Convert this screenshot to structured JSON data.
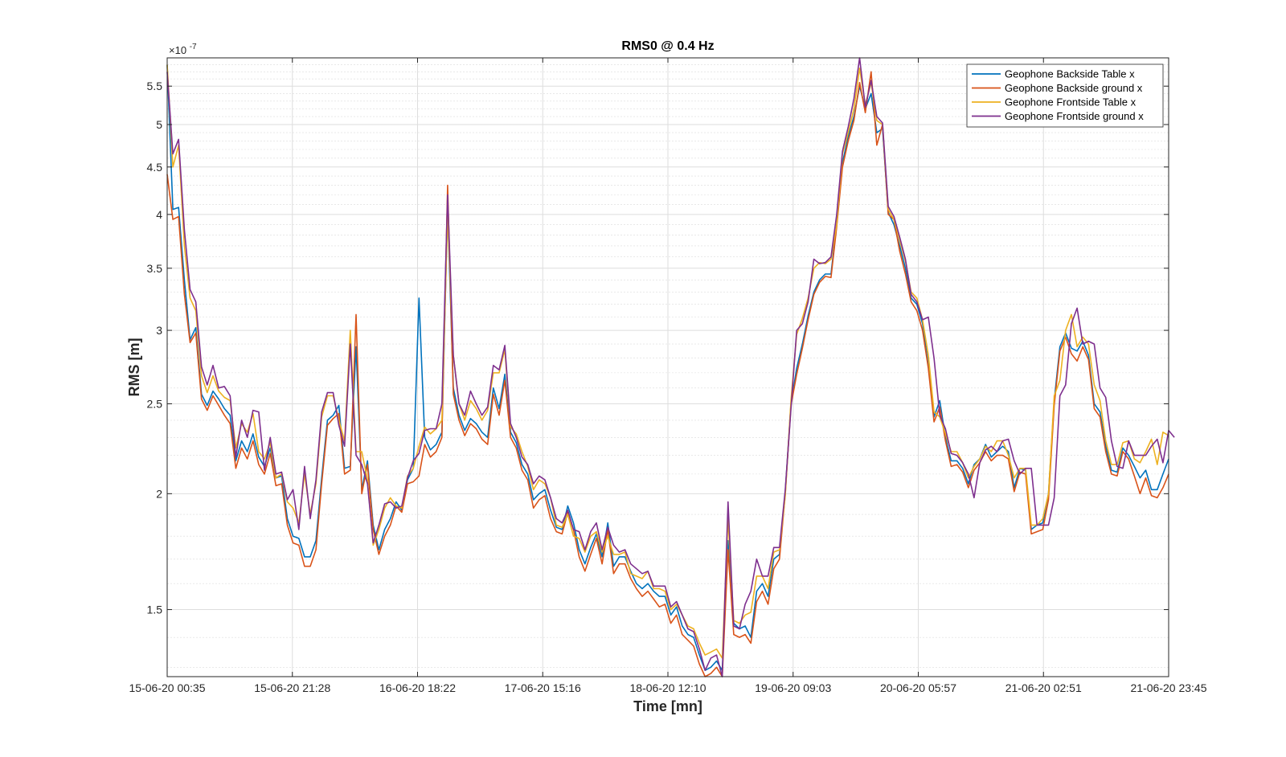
{
  "chart_data": {
    "type": "line",
    "title": "RMS0 @ 0.4 Hz",
    "xlabel": "Time [mn]",
    "ylabel": "RMS [m]",
    "y_exponent_label": "×10",
    "y_exponent_power": "-7",
    "yscale": "log",
    "ylim": [
      1.27,
      5.9
    ],
    "y_ticks": [
      1.5,
      2,
      2.5,
      3,
      3.5,
      4,
      4.5,
      5,
      5.5
    ],
    "y_tick_labels": [
      "1.5",
      "2",
      "2.5",
      "3",
      "3.5",
      "4",
      "4.5",
      "5",
      "5.5"
    ],
    "x_tick_labels": [
      "15-06-20 00:35",
      "15-06-20 21:28",
      "16-06-20 18:22",
      "17-06-20 15:16",
      "18-06-20 12:10",
      "19-06-20 09:03",
      "20-06-20 05:57",
      "21-06-20 02:51",
      "21-06-20 23:45"
    ],
    "grid": true,
    "legend_position": "top-right",
    "colors": [
      "#0072BD",
      "#D95319",
      "#EDB120",
      "#7E2F8E"
    ],
    "series": [
      {
        "name": "Geophone Backside Table x",
        "values": [
          5.8,
          4.05,
          4.07,
          3.4,
          2.93,
          3.02,
          2.56,
          2.49,
          2.58,
          2.53,
          2.47,
          2.43,
          2.17,
          2.28,
          2.22,
          2.32,
          2.19,
          2.14,
          2.24,
          2.08,
          2.09,
          1.88,
          1.8,
          1.79,
          1.71,
          1.71,
          1.78,
          2.08,
          2.4,
          2.43,
          2.49,
          2.13,
          2.14,
          2.88,
          2.02,
          2.17,
          1.85,
          1.74,
          1.83,
          1.88,
          1.96,
          1.92,
          2.07,
          2.13,
          3.25,
          2.3,
          2.23,
          2.26,
          2.33,
          4.05,
          2.6,
          2.43,
          2.34,
          2.41,
          2.38,
          2.33,
          2.3,
          2.6,
          2.47,
          2.69,
          2.33,
          2.27,
          2.15,
          2.1,
          1.97,
          2.0,
          2.02,
          1.92,
          1.84,
          1.83,
          1.94,
          1.86,
          1.74,
          1.68,
          1.75,
          1.81,
          1.71,
          1.86,
          1.67,
          1.71,
          1.71,
          1.65,
          1.6,
          1.58,
          1.6,
          1.57,
          1.55,
          1.55,
          1.48,
          1.51,
          1.44,
          1.41,
          1.4,
          1.34,
          1.29,
          1.3,
          1.32,
          1.29,
          1.78,
          1.45,
          1.43,
          1.44,
          1.4,
          1.57,
          1.6,
          1.55,
          1.7,
          1.72,
          2.01,
          2.5,
          2.73,
          2.9,
          3.11,
          3.3,
          3.4,
          3.45,
          3.45,
          3.9,
          4.55,
          4.85,
          5.1,
          5.5,
          5.2,
          5.4,
          4.9,
          4.95,
          4.02,
          3.9,
          3.7,
          3.5,
          3.25,
          3.2,
          3.05,
          2.75,
          2.42,
          2.52,
          2.3,
          2.17,
          2.17,
          2.13,
          2.05,
          2.15,
          2.18,
          2.26,
          2.19,
          2.22,
          2.25,
          2.22,
          2.03,
          2.13,
          2.12,
          1.83,
          1.85,
          1.86,
          2.0,
          2.52,
          2.88,
          2.98,
          2.87,
          2.85,
          2.92,
          2.82,
          2.5,
          2.45,
          2.25,
          2.12,
          2.11,
          2.24,
          2.2,
          2.14,
          2.08,
          2.12,
          2.02,
          2.02,
          2.1,
          2.18
        ]
      },
      {
        "name": "Geophone Backside ground x",
        "values": [
          4.42,
          3.95,
          3.98,
          3.28,
          2.91,
          2.98,
          2.53,
          2.46,
          2.55,
          2.49,
          2.43,
          2.38,
          2.13,
          2.24,
          2.18,
          2.28,
          2.15,
          2.1,
          2.21,
          2.04,
          2.05,
          1.85,
          1.77,
          1.76,
          1.67,
          1.67,
          1.74,
          2.05,
          2.37,
          2.41,
          2.44,
          2.1,
          2.12,
          3.12,
          2.0,
          2.15,
          1.83,
          1.72,
          1.8,
          1.85,
          1.94,
          1.91,
          2.05,
          2.06,
          2.09,
          2.26,
          2.19,
          2.22,
          2.3,
          4.3,
          2.56,
          2.4,
          2.31,
          2.38,
          2.35,
          2.29,
          2.26,
          2.56,
          2.43,
          2.65,
          2.3,
          2.24,
          2.12,
          2.07,
          1.93,
          1.97,
          1.99,
          1.88,
          1.82,
          1.81,
          1.91,
          1.83,
          1.71,
          1.65,
          1.72,
          1.79,
          1.68,
          1.83,
          1.64,
          1.68,
          1.68,
          1.62,
          1.58,
          1.55,
          1.57,
          1.54,
          1.51,
          1.52,
          1.45,
          1.48,
          1.41,
          1.39,
          1.37,
          1.31,
          1.27,
          1.28,
          1.3,
          1.27,
          1.74,
          1.41,
          1.4,
          1.41,
          1.38,
          1.53,
          1.57,
          1.52,
          1.66,
          1.7,
          2.0,
          2.49,
          2.69,
          2.87,
          3.08,
          3.28,
          3.38,
          3.43,
          3.42,
          3.88,
          4.5,
          4.8,
          5.05,
          5.55,
          5.15,
          5.7,
          4.75,
          5.0,
          4.0,
          3.95,
          3.65,
          3.45,
          3.22,
          3.15,
          3.0,
          2.73,
          2.39,
          2.48,
          2.28,
          2.14,
          2.15,
          2.11,
          2.03,
          2.12,
          2.16,
          2.22,
          2.17,
          2.2,
          2.2,
          2.18,
          2.01,
          2.11,
          2.1,
          1.81,
          1.82,
          1.83,
          1.97,
          2.49,
          2.85,
          2.95,
          2.83,
          2.78,
          2.88,
          2.79,
          2.47,
          2.42,
          2.22,
          2.1,
          2.09,
          2.22,
          2.18,
          2.09,
          2.0,
          2.08,
          1.99,
          1.98,
          2.03,
          2.1
        ]
      },
      {
        "name": "Geophone Frontside Table x",
        "values": [
          5.8,
          4.5,
          4.75,
          3.7,
          3.25,
          3.15,
          2.68,
          2.57,
          2.68,
          2.58,
          2.54,
          2.52,
          2.24,
          2.38,
          2.33,
          2.44,
          2.22,
          2.18,
          2.27,
          2.08,
          2.1,
          1.96,
          1.93,
          1.86,
          2.1,
          1.9,
          2.05,
          2.42,
          2.55,
          2.55,
          2.4,
          2.28,
          3.0,
          2.22,
          2.22,
          2.07,
          1.76,
          1.83,
          1.93,
          1.98,
          1.94,
          1.93,
          2.09,
          2.13,
          2.25,
          2.36,
          2.32,
          2.35,
          2.4,
          4.0,
          2.82,
          2.5,
          2.4,
          2.52,
          2.47,
          2.4,
          2.46,
          2.7,
          2.7,
          2.86,
          2.36,
          2.32,
          2.22,
          2.14,
          2.02,
          2.07,
          2.05,
          1.98,
          1.85,
          1.84,
          1.9,
          1.8,
          1.79,
          1.73,
          1.8,
          1.82,
          1.73,
          1.8,
          1.72,
          1.72,
          1.73,
          1.64,
          1.63,
          1.62,
          1.65,
          1.58,
          1.58,
          1.57,
          1.5,
          1.52,
          1.48,
          1.44,
          1.43,
          1.38,
          1.34,
          1.35,
          1.36,
          1.33,
          1.88,
          1.46,
          1.45,
          1.48,
          1.49,
          1.63,
          1.63,
          1.58,
          1.73,
          1.74,
          1.99,
          2.52,
          2.97,
          3.09,
          3.25,
          3.5,
          3.55,
          3.54,
          3.58,
          3.9,
          4.65,
          4.9,
          5.2,
          5.75,
          5.25,
          5.55,
          5.05,
          5.0,
          4.05,
          3.95,
          3.75,
          3.56,
          3.3,
          3.25,
          3.08,
          2.82,
          2.45,
          2.42,
          2.32,
          2.22,
          2.22,
          2.16,
          2.08,
          2.14,
          2.18,
          2.25,
          2.22,
          2.28,
          2.28,
          2.2,
          2.08,
          2.13,
          2.13,
          1.85,
          1.85,
          1.88,
          2.0,
          2.55,
          2.65,
          3.0,
          3.12,
          2.88,
          2.95,
          2.9,
          2.62,
          2.52,
          2.28,
          2.15,
          2.15,
          2.27,
          2.28,
          2.18,
          2.16,
          2.22,
          2.29,
          2.15,
          2.33,
          2.31
        ]
      },
      {
        "name": "Geophone Frontside ground x",
        "values": [
          5.7,
          4.65,
          4.82,
          3.85,
          3.32,
          3.22,
          2.74,
          2.62,
          2.75,
          2.6,
          2.61,
          2.55,
          2.19,
          2.4,
          2.3,
          2.46,
          2.45,
          2.12,
          2.3,
          2.1,
          2.11,
          1.97,
          2.02,
          1.83,
          2.14,
          1.88,
          2.07,
          2.45,
          2.57,
          2.57,
          2.37,
          2.25,
          2.9,
          2.2,
          2.15,
          2.05,
          1.77,
          1.85,
          1.95,
          1.96,
          1.93,
          1.94,
          2.08,
          2.17,
          2.21,
          2.34,
          2.35,
          2.35,
          2.5,
          4.2,
          2.82,
          2.5,
          2.43,
          2.58,
          2.5,
          2.43,
          2.48,
          2.75,
          2.72,
          2.89,
          2.38,
          2.3,
          2.19,
          2.15,
          2.05,
          2.09,
          2.07,
          1.98,
          1.88,
          1.86,
          1.92,
          1.83,
          1.82,
          1.74,
          1.82,
          1.86,
          1.74,
          1.84,
          1.76,
          1.73,
          1.74,
          1.68,
          1.66,
          1.64,
          1.65,
          1.59,
          1.59,
          1.59,
          1.51,
          1.53,
          1.48,
          1.43,
          1.42,
          1.36,
          1.29,
          1.33,
          1.34,
          1.27,
          1.96,
          1.44,
          1.43,
          1.52,
          1.57,
          1.7,
          1.63,
          1.63,
          1.75,
          1.75,
          2.02,
          2.47,
          3.0,
          3.05,
          3.22,
          3.58,
          3.54,
          3.55,
          3.6,
          4.0,
          4.68,
          4.97,
          5.33,
          5.9,
          5.22,
          5.58,
          5.1,
          5.02,
          4.08,
          3.98,
          3.78,
          3.58,
          3.28,
          3.22,
          3.08,
          3.1,
          2.8,
          2.43,
          2.35,
          2.21,
          2.2,
          2.16,
          2.1,
          1.98,
          2.16,
          2.23,
          2.25,
          2.22,
          2.28,
          2.29,
          2.17,
          2.1,
          2.13,
          2.13,
          1.85,
          1.85,
          1.85,
          1.98,
          2.55,
          2.62,
          3.05,
          3.17,
          2.9,
          2.92,
          2.9,
          2.6,
          2.54,
          2.28,
          2.14,
          2.13,
          2.28,
          2.2,
          2.2,
          2.2,
          2.25,
          2.29,
          2.16,
          2.34,
          2.3
        ]
      }
    ]
  }
}
